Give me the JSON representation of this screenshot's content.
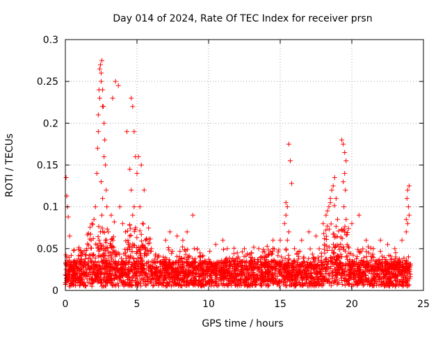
{
  "chart_data": {
    "type": "scatter",
    "title": "Day 014 of 2024, Rate Of TEC Index for receiver prsn",
    "xlabel": "GPS time / hours",
    "ylabel": "ROTI / TECUs",
    "xlim": [
      0,
      25
    ],
    "ylim": [
      0,
      0.3
    ],
    "x_ticks": [
      0,
      5,
      10,
      15,
      20,
      25
    ],
    "x_tick_labels": [
      "0",
      "5",
      "10",
      "15",
      "20",
      "25"
    ],
    "y_ticks": [
      0,
      0.05,
      0.1,
      0.15,
      0.2,
      0.25,
      0.3
    ],
    "y_tick_labels": [
      "0",
      "0.05",
      "0.1",
      "0.15",
      "0.2",
      "0.25",
      "0.3"
    ],
    "grid": true,
    "marker": "plus",
    "marker_color": "#ff0000",
    "series": [
      {
        "x": [
          0.05,
          0.1,
          0.15,
          0.2,
          0.3,
          0.1,
          0.15,
          0.05,
          0.2,
          0.1,
          1.0,
          1.5,
          1.8,
          2.0,
          2.1,
          2.2,
          2.25,
          2.3,
          2.35,
          2.4,
          2.45,
          2.5,
          2.55,
          2.6,
          2.65,
          2.7,
          2.75,
          2.8,
          2.85,
          2.9,
          2.4,
          2.5,
          2.6,
          2.3,
          2.7,
          2.5,
          2.6,
          2.55,
          2.45,
          2.35,
          2.8,
          2.9,
          3.0,
          3.2,
          3.5,
          3.7,
          3.3,
          3.8,
          4.0,
          4.2,
          4.3,
          4.5,
          4.6,
          4.7,
          4.8,
          4.9,
          5.0,
          4.6,
          4.8,
          4.7,
          4.9,
          4.5,
          4.4,
          4.2,
          5.1,
          5.3,
          5.5,
          5.2,
          5.4,
          5.6,
          6.0,
          6.5,
          7.0,
          7.3,
          7.8,
          8.2,
          8.5,
          8.9,
          9.0,
          9.4,
          9.8,
          10.5,
          11.0,
          11.3,
          12.0,
          12.5,
          13.0,
          13.5,
          14.0,
          14.5,
          15.0,
          15.3,
          15.4,
          15.5,
          15.6,
          15.7,
          15.8,
          15.4,
          15.6,
          15.5,
          16.0,
          16.5,
          17.0,
          17.5,
          18.0,
          18.2,
          18.4,
          18.5,
          18.6,
          18.8,
          18.3,
          18.5,
          18.7,
          18.9,
          19.0,
          19.3,
          19.4,
          19.5,
          19.6,
          19.5,
          19.4,
          19.55,
          19.45,
          19.6,
          19.5,
          20.0,
          20.5,
          21.0,
          21.5,
          22.0,
          22.5,
          23.0,
          23.5,
          23.8,
          24.0,
          23.9,
          23.85,
          23.95,
          24.0,
          23.8,
          23.9
        ],
        "y": [
          0.135,
          0.113,
          0.1,
          0.088,
          0.065,
          0.04,
          0.03,
          0.025,
          0.02,
          0.015,
          0.035,
          0.05,
          0.06,
          0.085,
          0.1,
          0.14,
          0.17,
          0.21,
          0.24,
          0.265,
          0.27,
          0.26,
          0.275,
          0.24,
          0.22,
          0.2,
          0.18,
          0.15,
          0.12,
          0.1,
          0.23,
          0.25,
          0.22,
          0.19,
          0.16,
          0.13,
          0.11,
          0.09,
          0.07,
          0.06,
          0.06,
          0.05,
          0.07,
          0.09,
          0.25,
          0.245,
          0.23,
          0.1,
          0.08,
          0.07,
          0.19,
          0.145,
          0.23,
          0.22,
          0.19,
          0.16,
          0.14,
          0.12,
          0.1,
          0.09,
          0.075,
          0.065,
          0.055,
          0.045,
          0.16,
          0.15,
          0.12,
          0.1,
          0.08,
          0.06,
          0.05,
          0.04,
          0.06,
          0.07,
          0.065,
          0.06,
          0.07,
          0.09,
          0.05,
          0.045,
          0.035,
          0.055,
          0.06,
          0.05,
          0.045,
          0.05,
          0.045,
          0.05,
          0.04,
          0.06,
          0.06,
          0.08,
          0.105,
          0.1,
          0.175,
          0.155,
          0.128,
          0.09,
          0.07,
          0.06,
          0.05,
          0.06,
          0.07,
          0.065,
          0.08,
          0.09,
          0.1,
          0.11,
          0.12,
          0.135,
          0.095,
          0.105,
          0.125,
          0.11,
          0.085,
          0.18,
          0.175,
          0.165,
          0.155,
          0.14,
          0.13,
          0.12,
          0.1,
          0.085,
          0.07,
          0.08,
          0.09,
          0.06,
          0.05,
          0.06,
          0.055,
          0.05,
          0.06,
          0.07,
          0.125,
          0.12,
          0.11,
          0.1,
          0.09,
          0.085,
          0.08
        ]
      }
    ]
  }
}
